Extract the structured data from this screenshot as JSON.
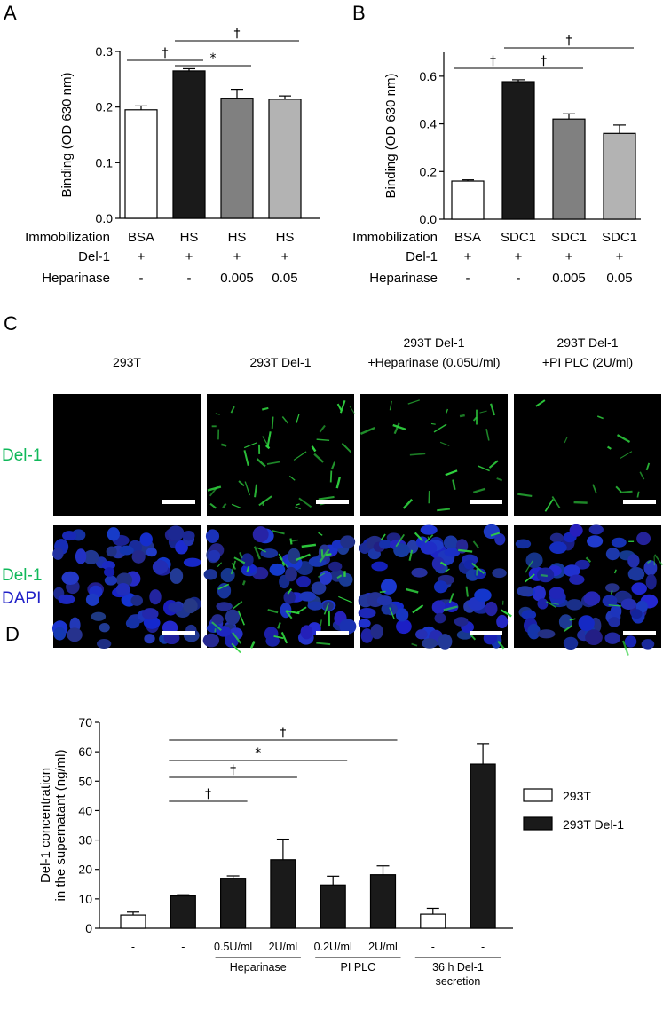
{
  "panel_letters": [
    "A",
    "B",
    "C",
    "D"
  ],
  "chart_data": [
    {
      "panel": "A",
      "type": "bar",
      "ylabel": "Binding (OD 630 nm)",
      "ylim": [
        0.0,
        0.3
      ],
      "yticks": [
        "0.0",
        "0.1",
        "0.2",
        "0.3"
      ],
      "categories": [
        "BSA",
        "HS",
        "HS",
        "HS"
      ],
      "values": [
        0.195,
        0.265,
        0.216,
        0.214
      ],
      "errors": [
        0.007,
        0.004,
        0.016,
        0.006
      ],
      "bar_colors": [
        "#ffffff",
        "#1a1a1a",
        "#808080",
        "#b3b3b3"
      ],
      "rows": [
        {
          "label": "Immobilization",
          "values": [
            "BSA",
            "HS",
            "HS",
            "HS"
          ]
        },
        {
          "label": "Del-1",
          "values": [
            "+",
            "+",
            "+",
            "+"
          ]
        },
        {
          "label": "Heparinase",
          "values": [
            "-",
            "-",
            "0.005",
            "0.05"
          ]
        }
      ],
      "significance": [
        {
          "from": 0,
          "to": 1,
          "symbol": "†"
        },
        {
          "from": 1,
          "to": 2,
          "symbol": "*"
        },
        {
          "from": 1,
          "to": 3,
          "symbol": "†"
        }
      ]
    },
    {
      "panel": "B",
      "type": "bar",
      "ylabel": "Binding (OD 630 nm)",
      "ylim": [
        0.0,
        0.7
      ],
      "yticks": [
        "0.0",
        "0.2",
        "0.4",
        "0.6"
      ],
      "categories": [
        "BSA",
        "SDC1",
        "SDC1",
        "SDC1"
      ],
      "values": [
        0.16,
        0.577,
        0.42,
        0.36
      ],
      "errors": [
        0.005,
        0.008,
        0.022,
        0.035
      ],
      "bar_colors": [
        "#ffffff",
        "#1a1a1a",
        "#808080",
        "#b3b3b3"
      ],
      "rows": [
        {
          "label": "Immobilization",
          "values": [
            "BSA",
            "SDC1",
            "SDC1",
            "SDC1"
          ]
        },
        {
          "label": "Del-1",
          "values": [
            "+",
            "+",
            "+",
            "+"
          ]
        },
        {
          "label": "Heparinase",
          "values": [
            "-",
            "-",
            "0.005",
            "0.05"
          ]
        }
      ],
      "significance": [
        {
          "from": 0,
          "to": 1,
          "symbol": "†"
        },
        {
          "from": 1,
          "to": 2,
          "symbol": "†"
        },
        {
          "from": 1,
          "to": 3,
          "symbol": "†"
        }
      ]
    },
    {
      "panel": "D",
      "type": "bar",
      "ylabel_lines": [
        "Del-1 concentration",
        "in the supernatant (ng/ml)"
      ],
      "ylim": [
        0,
        70
      ],
      "yticks": [
        "0",
        "10",
        "20",
        "30",
        "40",
        "50",
        "60",
        "70"
      ],
      "categories": [
        "-",
        "-",
        "0.5U/ml",
        "2U/ml",
        "0.2U/ml",
        "2U/ml",
        "-",
        "-"
      ],
      "values": [
        4.5,
        11.0,
        17.0,
        23.3,
        14.7,
        18.2,
        4.8,
        55.8
      ],
      "errors": [
        1.0,
        0.4,
        0.8,
        7.0,
        3.0,
        3.0,
        2.0,
        7.0
      ],
      "series_index": [
        0,
        1,
        1,
        1,
        1,
        1,
        0,
        1
      ],
      "series": [
        {
          "name": "293T",
          "color": "#ffffff"
        },
        {
          "name": "293T Del-1",
          "color": "#1a1a1a"
        }
      ],
      "groups": [
        {
          "label": "Heparinase",
          "from": 2,
          "to": 3
        },
        {
          "label": "PI PLC",
          "from": 4,
          "to": 5
        },
        {
          "label_lines": [
            "36 h Del-1",
            "secretion"
          ],
          "from": 6,
          "to": 7
        }
      ],
      "significance": [
        {
          "from": 1,
          "to": 2,
          "symbol": "†"
        },
        {
          "from": 1,
          "to": 3,
          "symbol": "†"
        },
        {
          "from": 1,
          "to": 4,
          "symbol": "*"
        },
        {
          "from": 1,
          "to": 5,
          "symbol": "†"
        }
      ]
    }
  ],
  "micrographs": {
    "columns": [
      "293T",
      "293T Del-1",
      "293T Del-1\n+Heparinase (0.05U/ml)",
      "293T Del-1\n+PI PLC (2U/ml)"
    ],
    "rows": [
      {
        "labels": [
          {
            "text": "Del-1",
            "color": "#10b85a"
          }
        ]
      },
      {
        "labels": [
          {
            "text": "Del-1",
            "color": "#10b85a"
          },
          {
            "text": "DAPI",
            "color": "#2020c8"
          }
        ]
      }
    ],
    "green_density": [
      0,
      1.0,
      0.55,
      0.35
    ],
    "nuclei_density": [
      1.0,
      0.9,
      1.0,
      0.9
    ]
  }
}
